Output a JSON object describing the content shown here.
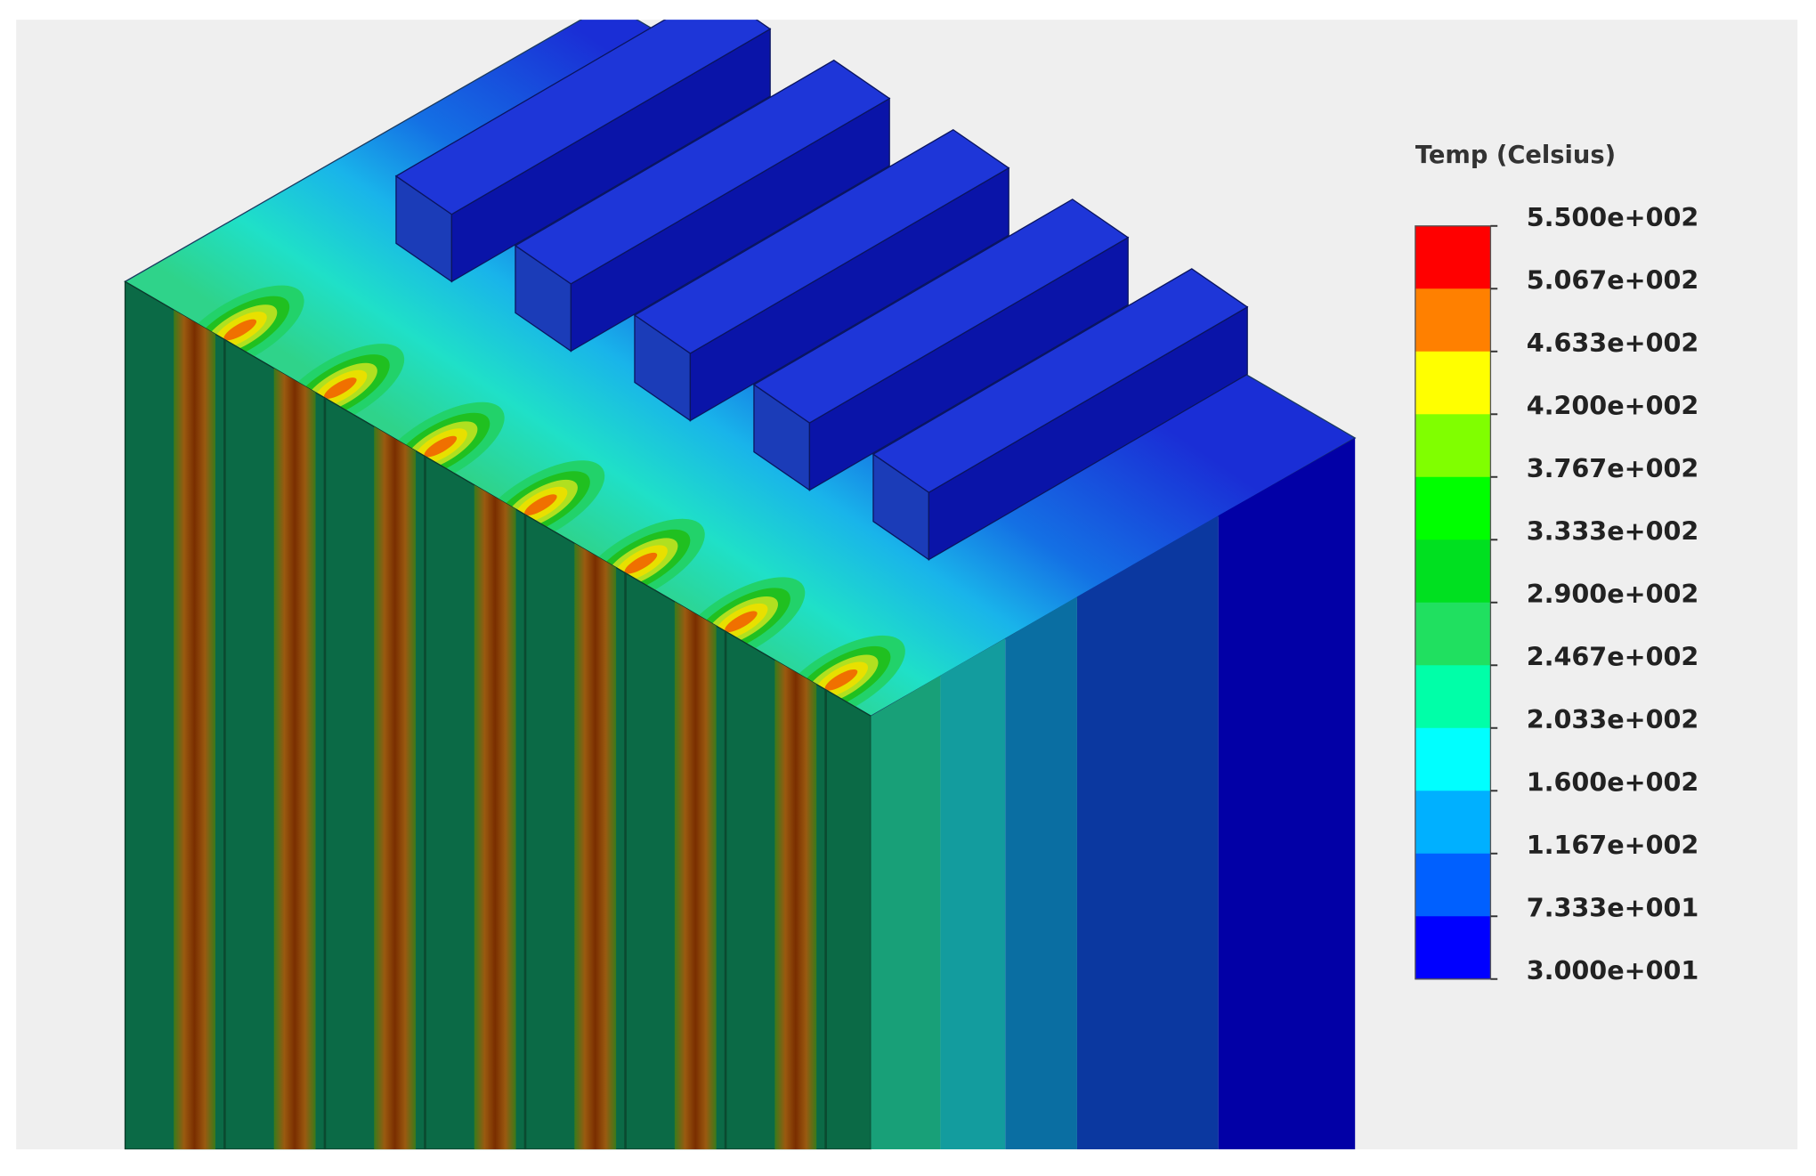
{
  "legend": {
    "title": "Temp (Celsius)",
    "labels": [
      "5.500e+002",
      "5.067e+002",
      "4.633e+002",
      "4.200e+002",
      "3.767e+002",
      "3.333e+002",
      "2.900e+002",
      "2.467e+002",
      "2.033e+002",
      "1.600e+002",
      "1.167e+002",
      "7.333e+001",
      "3.000e+001"
    ]
  }
}
